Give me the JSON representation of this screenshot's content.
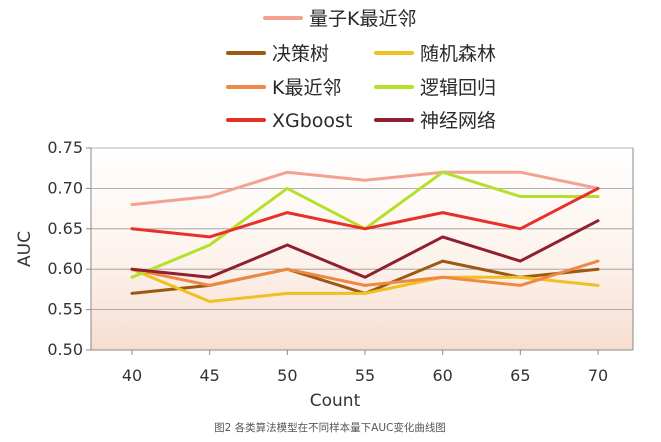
{
  "chart_data": {
    "type": "line",
    "title": "",
    "caption": "图2 各类算法模型在不同样本量下AUC变化曲线图",
    "xlabel": "Count",
    "ylabel": "AUC",
    "ylim": [
      0.5,
      0.75
    ],
    "yticks": [
      "0.50",
      "0.55",
      "0.60",
      "0.65",
      "0.70",
      "0.75"
    ],
    "grid": true,
    "legend_position": "top",
    "x": [
      40,
      45,
      50,
      55,
      60,
      65,
      70
    ],
    "x_labels": [
      "40",
      "45",
      "50",
      "55",
      "60",
      "65",
      "70"
    ],
    "series": [
      {
        "name": "量子K最近邻",
        "color": "#f4a28f",
        "values": [
          0.68,
          0.69,
          0.72,
          0.71,
          0.72,
          0.72,
          0.7
        ]
      },
      {
        "name": "决策树",
        "color": "#9b5a12",
        "values": [
          0.57,
          0.58,
          0.6,
          0.57,
          0.61,
          0.59,
          0.6
        ]
      },
      {
        "name": "随机森林",
        "color": "#f0c020",
        "values": [
          0.6,
          0.56,
          0.57,
          0.57,
          0.59,
          0.59,
          0.58
        ]
      },
      {
        "name": "K最近邻",
        "color": "#ee8844",
        "values": [
          0.6,
          0.58,
          0.6,
          0.58,
          0.59,
          0.58,
          0.61
        ]
      },
      {
        "name": "逻辑回归",
        "color": "#b5e02a",
        "values": [
          0.59,
          0.63,
          0.7,
          0.65,
          0.72,
          0.69,
          0.69
        ]
      },
      {
        "name": "XGboost",
        "color": "#e8302a",
        "values": [
          0.65,
          0.64,
          0.67,
          0.65,
          0.67,
          0.65,
          0.7
        ]
      },
      {
        "name": "神经网络",
        "color": "#8e2030",
        "values": [
          0.6,
          0.59,
          0.63,
          0.59,
          0.64,
          0.61,
          0.66
        ]
      }
    ]
  }
}
